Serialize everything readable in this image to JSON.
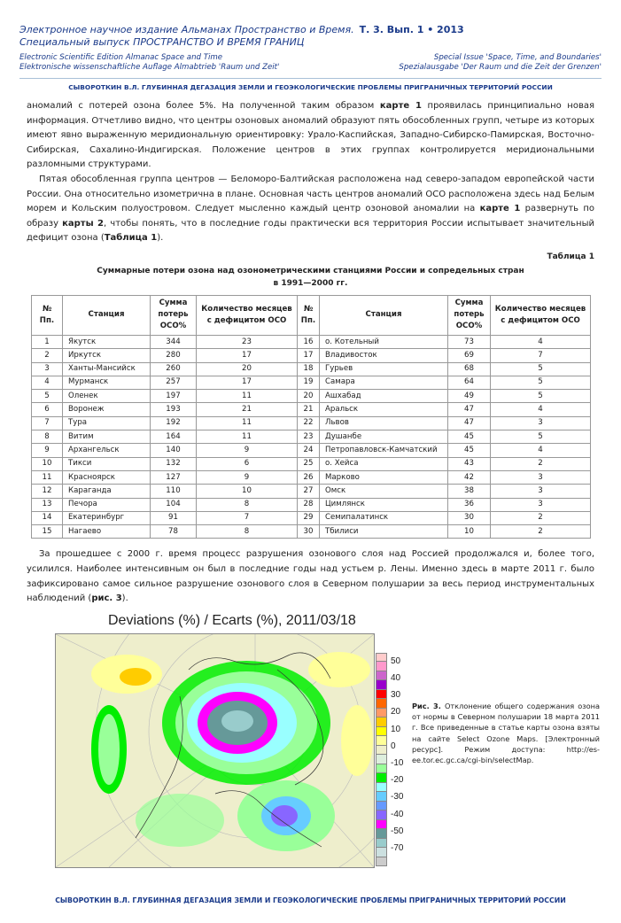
{
  "header": {
    "journal_ru": "Электронное научное издание Альманах Пространство и Время.",
    "volume": "Т. 3. Вып. 1 • 2013",
    "special_ru": "Специальный выпуск ПРОСТРАНСТВО И ВРЕМЯ ГРАНИЦ",
    "journal_en": "Electronic Scientific Edition Almanac Space and Time",
    "journal_de": "Elektronische wissenschaftliche Auflage Almabtrieb 'Raum und Zeit'",
    "special_en": "Special Issue 'Space, Time, and Boundaries'",
    "special_de": "Spezialausgabe 'Der Raum und die Zeit der Grenzen'",
    "running_title": "СЫВОРОТКИН В.Л. ГЛУБИННАЯ ДЕГАЗАЦИЯ ЗЕМЛИ И ГЕОЭКОЛОГИЧЕСКИЕ ПРОБЛЕМЫ ПРИГРАНИЧНЫХ ТЕРРИТОРИЙ РОССИИ"
  },
  "body": {
    "p1_a": "аномалий с потерей озона более 5%. На полученной таким образом ",
    "p1_b": "карте 1",
    "p1_c": " проявилась принципиально новая информация. Отчетливо видно, что центры озоновых аномалий образуют пять обособленных групп, четыре из которых имеют явно выраженную меридиональную ориентировку: Урало-Каспийская, Западно-Сибирско-Памирская, Восточно-Сибирская, Сахалино-Индигирская. Положение центров в этих группах контролируется меридиональными разломными структурами.",
    "p2_a": "Пятая обособленная группа центров — Беломоро-Балтийская расположена над северо-западом европейской части России. Она относительно изометрична в плане. Основная часть центров аномалий ОСО расположена здесь над Белым морем и Кольским полуостровом. Следует мысленно каждый центр озоновой аномалии на ",
    "p2_b": "карте 1",
    "p2_c": " развернуть по образу ",
    "p2_d": "карты 2",
    "p2_e": ", чтобы понять, что в последние годы практически вся территория России испытывает значительный дефицит озона (",
    "p2_f": "Таблица 1",
    "p2_g": ").",
    "p3_a": "За прошедшее с 2000 г. время процесс разрушения озонового слоя над Россией продолжался и, более того, усилился. Наиболее интенсивным он был в последние годы над устьем р. Лены. Именно здесь в марте 2011 г. было зафиксировано самое сильное разрушение озонового слоя в Северном полушарии за весь период инструментальных наблюдений (",
    "p3_b": "рис. 3",
    "p3_c": ")."
  },
  "table": {
    "label": "Таблица 1",
    "title_line1": "Суммарные потери озона над озонометрическими станциями России и сопредельных стран",
    "title_line2": "в 1991—2000 гг.",
    "headers": [
      "№ Пп.",
      "Станция",
      "Сумма потерь ОСО%",
      "Количество месяцев с дефицитом ОСО"
    ],
    "rows": [
      [
        "1",
        "Якутск",
        "344",
        "23",
        "16",
        "о. Котельный",
        "73",
        "4"
      ],
      [
        "2",
        "Иркутск",
        "280",
        "17",
        "17",
        "Владивосток",
        "69",
        "7"
      ],
      [
        "3",
        "Ханты-Мансийск",
        "260",
        "20",
        "18",
        "Гурьев",
        "68",
        "5"
      ],
      [
        "4",
        "Мурманск",
        "257",
        "17",
        "19",
        "Самара",
        "64",
        "5"
      ],
      [
        "5",
        "Оленек",
        "197",
        "11",
        "20",
        "Ашхабад",
        "49",
        "5"
      ],
      [
        "6",
        "Воронеж",
        "193",
        "21",
        "21",
        "Аральск",
        "47",
        "4"
      ],
      [
        "7",
        "Тура",
        "192",
        "11",
        "22",
        "Львов",
        "47",
        "3"
      ],
      [
        "8",
        "Витим",
        "164",
        "11",
        "23",
        "Душанбе",
        "45",
        "5"
      ],
      [
        "9",
        "Архангельск",
        "140",
        "9",
        "24",
        "Петропавловск-Камчатский",
        "45",
        "4"
      ],
      [
        "10",
        "Тикси",
        "132",
        "6",
        "25",
        "о. Хейса",
        "43",
        "2"
      ],
      [
        "11",
        "Красноярск",
        "127",
        "9",
        "26",
        "Марково",
        "42",
        "3"
      ],
      [
        "12",
        "Караганда",
        "110",
        "10",
        "27",
        "Омск",
        "38",
        "3"
      ],
      [
        "13",
        "Печора",
        "104",
        "8",
        "28",
        "Цимлянск",
        "36",
        "3"
      ],
      [
        "14",
        "Екатеринбург",
        "91",
        "7",
        "29",
        "Семипалатинск",
        "30",
        "2"
      ],
      [
        "15",
        "Нагаево",
        "78",
        "8",
        "30",
        "Тбилиси",
        "10",
        "2"
      ]
    ]
  },
  "figure": {
    "title": "Deviations (%) / Ecarts (%), 2011/03/18",
    "legend_labels": [
      "50",
      "40",
      "30",
      "20",
      "10",
      "0",
      "-10",
      "-20",
      "-30",
      "-40",
      "-50",
      "-70"
    ],
    "legend_colors": [
      "#ffcccc",
      "#ff99cc",
      "#cc66cc",
      "#9900cc",
      "#ff0000",
      "#ff6600",
      "#ff9966",
      "#ffcc00",
      "#ffff00",
      "#ffff99",
      "#eeeecc",
      "#ddeedd",
      "#99ff99",
      "#00ee00",
      "#99ffff",
      "#66ccff",
      "#6699ff",
      "#8866ff",
      "#ff00ff",
      "#669999",
      "#99cccc",
      "#cce0e0",
      "#cccccc"
    ],
    "caption_label": "Рис. 3.",
    "caption_text": " Отклонение общего содержания озона от нормы в Северном полушарии 18 марта 2011 г. Все приведенные в статье карты озона взяты на сайте Select Ozone Maps. [Электронный ресурс]. Режим доступа: http://es-ee.tor.ec.gc.ca/cgi-bin/selectMap."
  },
  "footer": {
    "text": "СЫВОРОТКИН В.Л.  ГЛУБИННАЯ ДЕГАЗАЦИЯ ЗЕМЛИ И ГЕОЭКОЛОГИЧЕСКИЕ ПРОБЛЕМЫ ПРИГРАНИЧНЫХ ТЕРРИТОРИЙ РОССИИ"
  }
}
